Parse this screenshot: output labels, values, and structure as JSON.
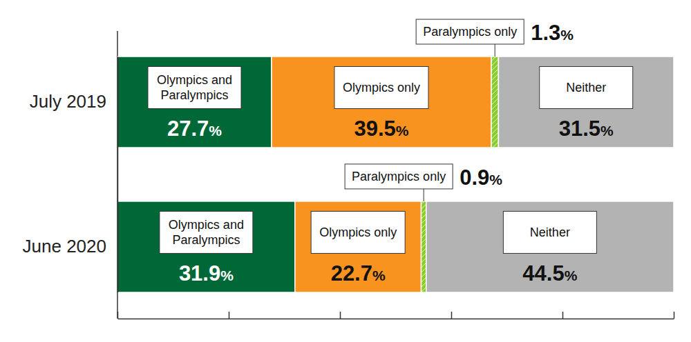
{
  "chart_data": {
    "type": "bar",
    "orientation": "horizontal",
    "stacked": true,
    "data_labels": true,
    "tick_labels": false,
    "categories": [
      "July 2019",
      "June 2020"
    ],
    "series": [
      {
        "name": "Olympics and Paralympics",
        "color": "#006837",
        "values": [
          27.7,
          31.9
        ],
        "value_labels": [
          "27.7%",
          "31.9%"
        ]
      },
      {
        "name": "Olympics only",
        "color": "#f7931e",
        "values": [
          39.5,
          22.7
        ],
        "value_labels": [
          "39.5%",
          "22.7%"
        ]
      },
      {
        "name": "Paralympics only",
        "color": "#8cc63f",
        "values": [
          1.3,
          0.9
        ],
        "value_labels": [
          "1.3%",
          "0.9%"
        ]
      },
      {
        "name": "Neither",
        "color": "#b3b3b3",
        "values": [
          31.5,
          44.5
        ],
        "value_labels": [
          "31.5%",
          "44.5%"
        ]
      }
    ],
    "xlim": [
      0,
      100
    ],
    "xticks": [
      0,
      20,
      40,
      60,
      80,
      100
    ]
  }
}
